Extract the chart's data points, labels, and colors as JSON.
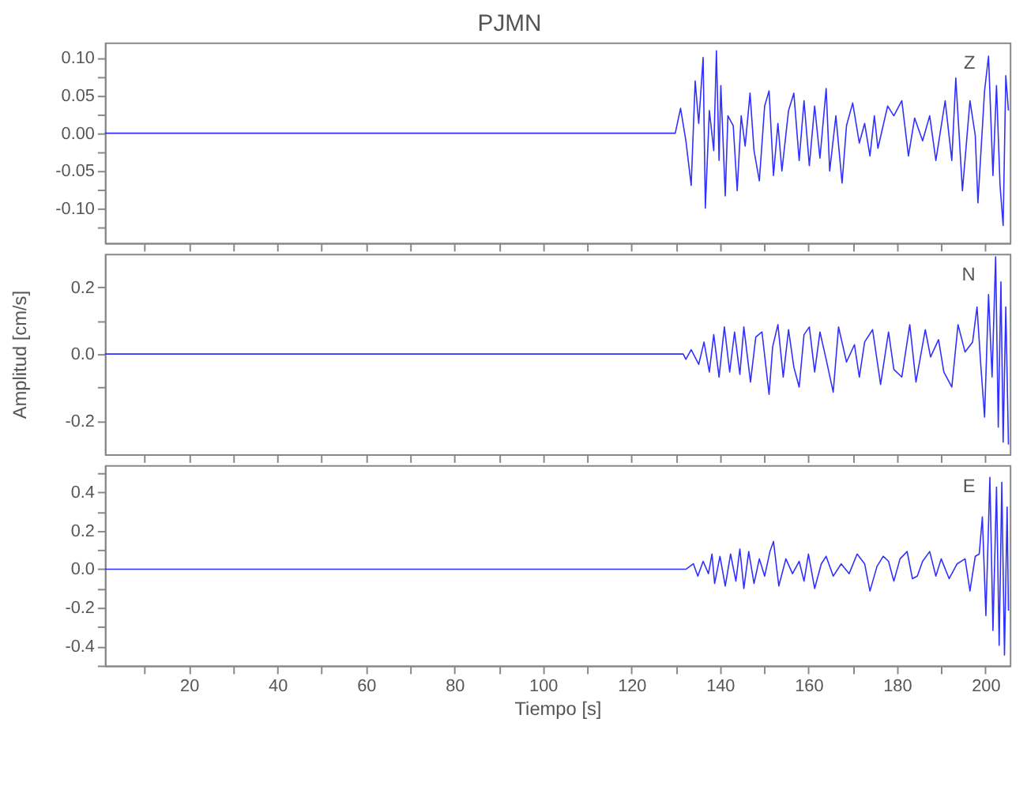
{
  "chart_data": [
    {
      "type": "line",
      "title": "PJMN",
      "annotations": [
        "Z"
      ],
      "tick_labels": "y",
      "grid": false,
      "line_style": "solid",
      "marker": "none",
      "xlim": [
        1,
        205.5
      ],
      "ylim": [
        -0.145,
        0.12
      ],
      "xticks": [
        {
          "value": 10,
          "label": null
        },
        20,
        {
          "value": 30,
          "label": null
        },
        40,
        {
          "value": 50,
          "label": null
        },
        60,
        {
          "value": 70,
          "label": null
        },
        80,
        {
          "value": 90,
          "label": null
        },
        100,
        {
          "value": 110,
          "label": null
        },
        120,
        {
          "value": 130,
          "label": null
        },
        140,
        {
          "value": 150,
          "label": null
        },
        160,
        {
          "value": 170,
          "label": null
        },
        180,
        {
          "value": 190,
          "label": null
        },
        200
      ],
      "yticks": [
        {
          "value": -0.125,
          "label": null
        },
        {
          "value": -0.1,
          "label": "-0.10"
        },
        {
          "value": -0.075,
          "label": null
        },
        {
          "value": -0.05,
          "label": "-0.05"
        },
        {
          "value": -0.025,
          "label": null
        },
        {
          "value": 0,
          "label": "0.00"
        },
        {
          "value": 0.025,
          "label": null
        },
        {
          "value": 0.05,
          "label": "0.05"
        },
        {
          "value": 0.075,
          "label": null
        },
        {
          "value": 0.1,
          "label": "0.10"
        }
      ],
      "x": [
        1,
        129.9,
        131.1,
        132.3,
        133.5,
        134.4,
        135.2,
        136.2,
        136.7,
        137.6,
        138.6,
        139.2,
        139.8,
        140.2,
        141.2,
        141.8,
        143.0,
        143.9,
        144.8,
        145.7,
        146.8,
        147.7,
        148.9,
        150.1,
        151.1,
        152.1,
        153.1,
        154.0,
        155.5,
        156.7,
        157.9,
        159.0,
        160.2,
        161.4,
        162.6,
        164.0,
        164.8,
        166.2,
        167.6,
        168.6,
        170.0,
        171.5,
        172.7,
        173.9,
        174.9,
        175.7,
        177.9,
        179.3,
        181.1,
        182.6,
        184.0,
        185.8,
        187.4,
        188.8,
        190.9,
        192.4,
        193.3,
        194.8,
        196.5,
        197.7,
        198.3,
        199.8,
        200.7,
        201.7,
        202.5,
        203.3,
        204.0,
        204.6,
        205.2
      ],
      "series": [
        {
          "color": "#2f2fff",
          "values": [
            0,
            0,
            0.033,
            -0.01,
            -0.069,
            0.069,
            0.013,
            0.1,
            -0.099,
            0.03,
            -0.023,
            0.109,
            -0.036,
            0.063,
            -0.083,
            0.023,
            0.01,
            -0.076,
            0.023,
            -0.017,
            0.053,
            -0.023,
            -0.063,
            0.036,
            0.056,
            -0.056,
            0.013,
            -0.05,
            0.03,
            0.053,
            -0.036,
            0.043,
            -0.043,
            0.036,
            -0.033,
            0.059,
            -0.05,
            0.023,
            -0.066,
            0.01,
            0.04,
            -0.013,
            0.013,
            -0.03,
            0.023,
            -0.02,
            0.036,
            0.023,
            0.043,
            -0.03,
            0.02,
            -0.01,
            0.023,
            -0.036,
            0.043,
            -0.036,
            0.073,
            -0.076,
            0.043,
            -0.003,
            -0.092,
            0.056,
            0.102,
            -0.056,
            0.063,
            -0.069,
            -0.122,
            0.076,
            0.03
          ]
        }
      ]
    },
    {
      "type": "line",
      "ylabel": "Amplitud [cm/s]",
      "annotations": [
        "N"
      ],
      "tick_labels": "y",
      "grid": false,
      "line_style": "solid",
      "marker": "none",
      "xlim": [
        1,
        205.5
      ],
      "ylim": [
        -0.3,
        0.3
      ],
      "xticks": [
        {
          "value": 10,
          "label": null
        },
        20,
        {
          "value": 30,
          "label": null
        },
        40,
        {
          "value": 50,
          "label": null
        },
        60,
        {
          "value": 70,
          "label": null
        },
        80,
        {
          "value": 90,
          "label": null
        },
        100,
        {
          "value": 110,
          "label": null
        },
        120,
        {
          "value": 130,
          "label": null
        },
        140,
        {
          "value": 150,
          "label": null
        },
        160,
        {
          "value": 170,
          "label": null
        },
        180,
        {
          "value": 190,
          "label": null
        },
        200
      ],
      "yticks": [
        {
          "value": -0.2,
          "label": "-0.2"
        },
        {
          "value": -0.1,
          "label": null
        },
        {
          "value": 0,
          "label": "0.0"
        },
        {
          "value": 0.1,
          "label": null
        },
        {
          "value": 0.2,
          "label": "0.2"
        }
      ],
      "x": [
        1,
        131.7,
        132.3,
        133.5,
        135.2,
        136.4,
        137.6,
        138.6,
        139.8,
        141.0,
        142.2,
        143.3,
        144.5,
        145.4,
        146.9,
        148.1,
        149.5,
        151.1,
        151.9,
        153.1,
        154.3,
        155.5,
        156.7,
        157.9,
        159.0,
        160.2,
        161.4,
        162.6,
        164.0,
        165.6,
        166.8,
        168.6,
        170.4,
        171.5,
        172.7,
        174.5,
        176.3,
        178.1,
        179.3,
        181.1,
        182.9,
        184.3,
        186.4,
        187.6,
        189.4,
        190.6,
        192.4,
        193.8,
        195.4,
        197.1,
        198.1,
        198.9,
        199.8,
        200.7,
        201.5,
        202.3,
        202.9,
        203.5,
        204.0,
        204.6,
        205.2
      ],
      "series": [
        {
          "color": "#2f2fff",
          "values": [
            0,
            0,
            -0.016,
            0.013,
            -0.031,
            0.036,
            -0.054,
            0.058,
            -0.069,
            0.081,
            -0.054,
            0.066,
            -0.061,
            0.081,
            -0.084,
            0.051,
            0.066,
            -0.121,
            0.021,
            0.088,
            -0.069,
            0.073,
            -0.039,
            -0.099,
            0.058,
            0.081,
            -0.054,
            0.066,
            -0.016,
            -0.114,
            0.081,
            -0.024,
            0.028,
            -0.069,
            0.036,
            0.073,
            -0.091,
            0.066,
            -0.046,
            -0.069,
            0.088,
            -0.084,
            0.073,
            -0.009,
            0.043,
            -0.054,
            -0.099,
            0.088,
            0.006,
            0.036,
            0.141,
            -0.024,
            -0.189,
            0.178,
            -0.069,
            0.291,
            -0.219,
            0.216,
            -0.264,
            0.141,
            -0.271
          ]
        }
      ]
    },
    {
      "type": "line",
      "xlabel": "Tiempo [s]",
      "annotations": [
        "E"
      ],
      "grid": false,
      "line_style": "solid",
      "marker": "none",
      "xlim": [
        1,
        205.5
      ],
      "ylim": [
        -0.5,
        0.54
      ],
      "xticks": [
        {
          "value": 10,
          "label": null
        },
        20,
        {
          "value": 30,
          "label": null
        },
        40,
        {
          "value": 50,
          "label": null
        },
        60,
        {
          "value": 70,
          "label": null
        },
        80,
        {
          "value": 90,
          "label": null
        },
        100,
        {
          "value": 110,
          "label": null
        },
        120,
        {
          "value": 130,
          "label": null
        },
        140,
        {
          "value": 150,
          "label": null
        },
        160,
        {
          "value": 170,
          "label": null
        },
        180,
        {
          "value": 190,
          "label": null
        },
        200
      ],
      "yticks": [
        {
          "value": -0.5,
          "label": null
        },
        {
          "value": -0.4,
          "label": "-0.4"
        },
        {
          "value": -0.3,
          "label": null
        },
        {
          "value": -0.2,
          "label": "-0.2"
        },
        {
          "value": -0.1,
          "label": null
        },
        {
          "value": 0,
          "label": "0.0"
        },
        {
          "value": 0.1,
          "label": null
        },
        {
          "value": 0.2,
          "label": "0.2"
        },
        {
          "value": 0.3,
          "label": null
        },
        {
          "value": 0.4,
          "label": "0.4"
        },
        {
          "value": 0.5,
          "label": null
        }
      ],
      "x": [
        1,
        132.3,
        132.9,
        134.0,
        135.0,
        136.2,
        137.4,
        138.2,
        138.8,
        140.0,
        141.2,
        142.4,
        143.6,
        144.5,
        145.4,
        146.5,
        147.7,
        148.9,
        150.1,
        151.3,
        152.1,
        153.3,
        154.9,
        156.4,
        157.9,
        159.0,
        160.0,
        161.4,
        162.9,
        164.0,
        165.6,
        167.4,
        169.2,
        171.0,
        172.7,
        173.9,
        175.5,
        176.9,
        178.1,
        179.3,
        180.7,
        182.3,
        183.5,
        184.6,
        185.8,
        187.4,
        188.8,
        190.0,
        191.8,
        193.6,
        195.4,
        196.5,
        197.7,
        198.6,
        199.3,
        200.1,
        201.0,
        201.7,
        202.5,
        203.1,
        203.7,
        204.3,
        204.9,
        205.2
      ],
      "series": [
        {
          "color": "#2f2fff",
          "values": [
            0,
            0,
            0.01,
            0.028,
            -0.036,
            0.041,
            -0.023,
            0.079,
            -0.074,
            0.067,
            -0.087,
            0.079,
            -0.062,
            0.105,
            -0.1,
            0.092,
            -0.074,
            0.054,
            -0.036,
            0.092,
            0.144,
            -0.087,
            0.054,
            -0.023,
            0.041,
            -0.062,
            0.079,
            -0.1,
            0.028,
            0.067,
            -0.036,
            0.028,
            -0.023,
            0.079,
            0.028,
            -0.113,
            0.015,
            0.067,
            0.041,
            -0.062,
            0.054,
            0.092,
            -0.049,
            -0.036,
            0.041,
            0.092,
            -0.036,
            0.054,
            -0.049,
            0.028,
            0.054,
            -0.113,
            0.067,
            0.079,
            0.272,
            -0.241,
            0.477,
            -0.318,
            0.426,
            -0.395,
            0.451,
            -0.446,
            0.323,
            -0.215
          ]
        }
      ]
    }
  ]
}
